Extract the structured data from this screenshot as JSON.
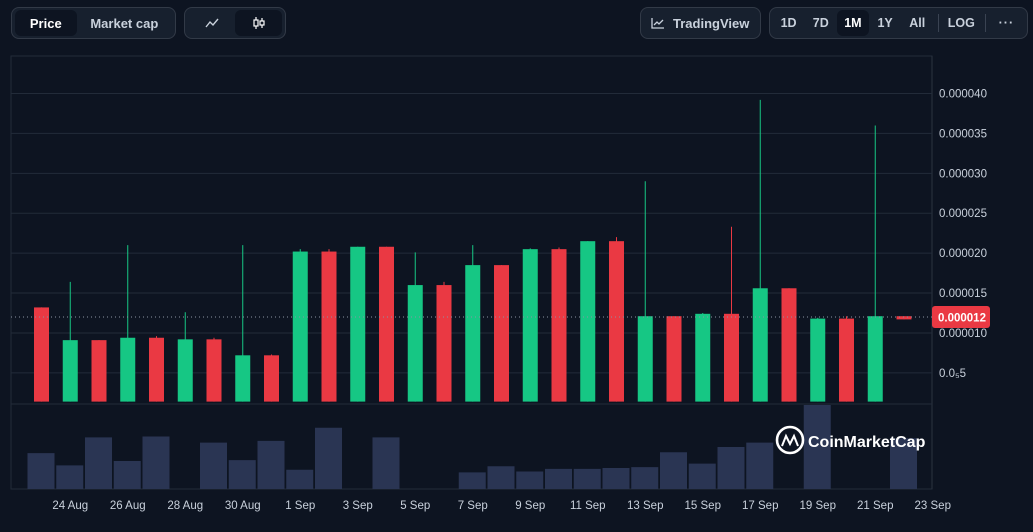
{
  "toolbar": {
    "type_tabs": [
      "Price",
      "Market cap"
    ],
    "active_type": "Price",
    "view_icons": [
      "line-chart-icon",
      "candlestick-icon"
    ],
    "active_view": "candlestick-icon",
    "tradingview_label": "TradingView",
    "ranges": [
      "1D",
      "7D",
      "1M",
      "1Y",
      "All"
    ],
    "active_range": "1M",
    "log_label": "LOG",
    "more_label": "···"
  },
  "colors": {
    "up": "#16c784",
    "down": "#ea3943",
    "volume": "#2a3553",
    "grid": "#222b39",
    "price_tag": "#ea3943",
    "background": "#0d1421"
  },
  "watermark": "CoinMarketCap",
  "chart_data": {
    "type": "candlestick",
    "x_tick_labels": [
      "24 Aug",
      "26 Aug",
      "28 Aug",
      "30 Aug",
      "1 Sep",
      "3 Sep",
      "5 Sep",
      "7 Sep",
      "9 Sep",
      "11 Sep",
      "13 Sep",
      "15 Sep",
      "17 Sep",
      "19 Sep",
      "21 Sep",
      "23 Sep"
    ],
    "y_tick_labels": [
      "0.000040",
      "0.000035",
      "0.000030",
      "0.000025",
      "0.000020",
      "0.000015",
      "0.000010",
      "0.0₅5"
    ],
    "y_ticks": [
      4e-05,
      3.5e-05,
      3e-05,
      2.5e-05,
      2e-05,
      1.5e-05,
      1e-05,
      5e-06
    ],
    "ylim": [
      1.1e-06,
      4.47e-05
    ],
    "current_price_label": "0.000012",
    "current_price": 1.2e-05,
    "grid": true,
    "candles": [
      {
        "date": "23 Aug",
        "open": 1.32e-05,
        "high": 1.32e-05,
        "low": 1.4e-06,
        "close": 1.4e-06
      },
      {
        "date": "24 Aug",
        "open": 1.4e-06,
        "high": 1.64e-05,
        "low": 1.4e-06,
        "close": 9.1e-06
      },
      {
        "date": "25 Aug",
        "open": 9.1e-06,
        "high": 9.1e-06,
        "low": 1.4e-06,
        "close": 1.4e-06
      },
      {
        "date": "26 Aug",
        "open": 1.4e-06,
        "high": 2.1e-05,
        "low": 1.4e-06,
        "close": 9.4e-06
      },
      {
        "date": "27 Aug",
        "open": 9.4e-06,
        "high": 9.6e-06,
        "low": 1.4e-06,
        "close": 1.4e-06
      },
      {
        "date": "28 Aug",
        "open": 1.4e-06,
        "high": 1.26e-05,
        "low": 1.4e-06,
        "close": 9.2e-06
      },
      {
        "date": "29 Aug",
        "open": 9.2e-06,
        "high": 9.4e-06,
        "low": 1.4e-06,
        "close": 1.4e-06
      },
      {
        "date": "30 Aug",
        "open": 1.4e-06,
        "high": 2.1e-05,
        "low": 1.4e-06,
        "close": 7.2e-06
      },
      {
        "date": "31 Aug",
        "open": 7.2e-06,
        "high": 7.3e-06,
        "low": 1.4e-06,
        "close": 1.4e-06
      },
      {
        "date": "1 Sep",
        "open": 1.4e-06,
        "high": 2.05e-05,
        "low": 1.4e-06,
        "close": 2.02e-05
      },
      {
        "date": "2 Sep",
        "open": 2.02e-05,
        "high": 2.05e-05,
        "low": 1.4e-06,
        "close": 1.4e-06
      },
      {
        "date": "3 Sep",
        "open": 1.4e-06,
        "high": 2.08e-05,
        "low": 1.4e-06,
        "close": 2.08e-05
      },
      {
        "date": "4 Sep",
        "open": 2.08e-05,
        "high": 2.08e-05,
        "low": 1.4e-06,
        "close": 1.4e-06
      },
      {
        "date": "5 Sep",
        "open": 1.4e-06,
        "high": 2.01e-05,
        "low": 1.4e-06,
        "close": 1.6e-05
      },
      {
        "date": "6 Sep",
        "open": 1.6e-05,
        "high": 1.64e-05,
        "low": 1.4e-06,
        "close": 1.4e-06
      },
      {
        "date": "7 Sep",
        "open": 1.4e-06,
        "high": 2.1e-05,
        "low": 1.4e-06,
        "close": 1.85e-05
      },
      {
        "date": "8 Sep",
        "open": 1.85e-05,
        "high": 1.85e-05,
        "low": 1.4e-06,
        "close": 1.4e-06
      },
      {
        "date": "9 Sep",
        "open": 1.4e-06,
        "high": 2.06e-05,
        "low": 1.4e-06,
        "close": 2.05e-05
      },
      {
        "date": "10 Sep",
        "open": 2.05e-05,
        "high": 2.07e-05,
        "low": 1.4e-06,
        "close": 1.4e-06
      },
      {
        "date": "11 Sep",
        "open": 1.4e-06,
        "high": 2.15e-05,
        "low": 1.4e-06,
        "close": 2.15e-05
      },
      {
        "date": "12 Sep",
        "open": 2.15e-05,
        "high": 2.2e-05,
        "low": 1.4e-06,
        "close": 1.4e-06
      },
      {
        "date": "13 Sep",
        "open": 1.4e-06,
        "high": 2.9e-05,
        "low": 1.4e-06,
        "close": 1.21e-05
      },
      {
        "date": "14 Sep",
        "open": 1.21e-05,
        "high": 1.21e-05,
        "low": 1.4e-06,
        "close": 1.4e-06
      },
      {
        "date": "15 Sep",
        "open": 1.4e-06,
        "high": 1.25e-05,
        "low": 1.4e-06,
        "close": 1.24e-05
      },
      {
        "date": "16 Sep",
        "open": 1.24e-05,
        "high": 2.33e-05,
        "low": 1.4e-06,
        "close": 1.4e-06
      },
      {
        "date": "17 Sep",
        "open": 1.4e-06,
        "high": 3.92e-05,
        "low": 1.4e-06,
        "close": 1.56e-05
      },
      {
        "date": "18 Sep",
        "open": 1.56e-05,
        "high": 1.56e-05,
        "low": 1.4e-06,
        "close": 1.4e-06
      },
      {
        "date": "19 Sep",
        "open": 1.4e-06,
        "high": 1.19e-05,
        "low": 1.4e-06,
        "close": 1.18e-05
      },
      {
        "date": "20 Sep",
        "open": 1.18e-05,
        "high": 1.21e-05,
        "low": 1.4e-06,
        "close": 1.4e-06
      },
      {
        "date": "21 Sep",
        "open": 1.4e-06,
        "high": 3.6e-05,
        "low": 1.4e-06,
        "close": 1.21e-05
      },
      {
        "date": "22 Sep",
        "open": 1.21e-05,
        "high": 1.21e-05,
        "low": 1.17e-05,
        "close": 1.17e-05
      }
    ],
    "volume": [
      0.41,
      0.27,
      0.59,
      0.32,
      0.6,
      0,
      0.53,
      0.33,
      0.55,
      0.22,
      0.7,
      0,
      0.59,
      0,
      0,
      0.19,
      0.26,
      0.2,
      0.23,
      0.23,
      0.24,
      0.25,
      0.42,
      0.29,
      0.48,
      0.53,
      0,
      0.96,
      0,
      0,
      0.58
    ]
  }
}
